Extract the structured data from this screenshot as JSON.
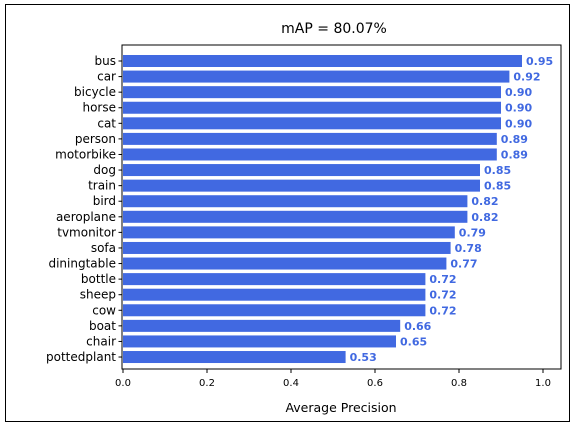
{
  "chart_data": {
    "type": "bar",
    "orientation": "horizontal",
    "title": "mAP = 80.07%",
    "xlabel": "Average Precision",
    "ylabel": "",
    "xlim": [
      0,
      1.0
    ],
    "x_ticks": [
      "0.0",
      "0.2",
      "0.4",
      "0.6",
      "0.8",
      "1.0"
    ],
    "grid": false,
    "bar_color": "#4169E1",
    "label_color": "#4169E1",
    "categories": [
      "bus",
      "car",
      "bicycle",
      "horse",
      "cat",
      "person",
      "motorbike",
      "dog",
      "train",
      "bird",
      "aeroplane",
      "tvmonitor",
      "sofa",
      "diningtable",
      "bottle",
      "sheep",
      "cow",
      "boat",
      "chair",
      "pottedplant"
    ],
    "values": [
      0.95,
      0.92,
      0.9,
      0.9,
      0.9,
      0.89,
      0.89,
      0.85,
      0.85,
      0.82,
      0.82,
      0.79,
      0.78,
      0.77,
      0.72,
      0.72,
      0.72,
      0.66,
      0.65,
      0.53
    ],
    "value_labels": [
      "0.95",
      "0.92",
      "0.90",
      "0.90",
      "0.90",
      "0.89",
      "0.89",
      "0.85",
      "0.85",
      "0.82",
      "0.82",
      "0.79",
      "0.78",
      "0.77",
      "0.72",
      "0.72",
      "0.72",
      "0.66",
      "0.65",
      "0.53"
    ]
  }
}
